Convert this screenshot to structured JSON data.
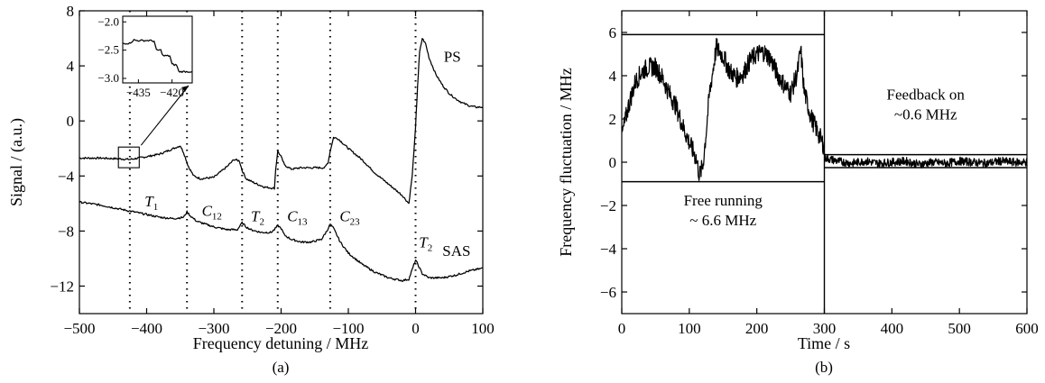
{
  "chart_data": [
    {
      "panel_label": "(a)",
      "type": "line",
      "xlabel": "Frequency detuning / MHz",
      "ylabel": "Signal / (a.u.)",
      "xlim": [
        -500,
        100
      ],
      "ylim": [
        -14,
        8
      ],
      "xticks": [
        -500,
        -400,
        -300,
        -200,
        -100,
        0,
        100
      ],
      "yticks": [
        -12,
        -8,
        -4,
        0,
        4,
        8
      ],
      "xtick_labels": [
        "−500",
        "−400",
        "−300",
        "−200",
        "−100",
        "0",
        "100"
      ],
      "ytick_labels": [
        "−12",
        "−8",
        "−4",
        "0",
        "4",
        "8"
      ],
      "grid": false,
      "vertical_dotted_lines_x": [
        -425,
        -340,
        -258,
        -205,
        -127,
        0
      ],
      "series": [
        {
          "name": "PS",
          "x": [
            -500,
            -470,
            -440,
            -425,
            -400,
            -380,
            -360,
            -350,
            -345,
            -338,
            -330,
            -320,
            -300,
            -290,
            -280,
            -270,
            -262,
            -258,
            -252,
            -240,
            -225,
            -210,
            -208,
            -205,
            -200,
            -195,
            -185,
            -170,
            -150,
            -135,
            -130,
            -127,
            -122,
            -115,
            -100,
            -80,
            -60,
            -40,
            -20,
            -10,
            -5,
            0,
            3,
            6,
            10,
            15,
            20,
            30,
            40,
            50,
            60,
            70,
            80,
            90,
            100
          ],
          "y": [
            -2.7,
            -2.7,
            -2.75,
            -2.8,
            -2.6,
            -2.4,
            -2.0,
            -1.8,
            -2.3,
            -3.3,
            -4.0,
            -4.2,
            -4.1,
            -3.7,
            -3.3,
            -2.8,
            -2.9,
            -3.6,
            -4.2,
            -4.5,
            -4.8,
            -4.9,
            -3.5,
            -2.2,
            -2.6,
            -3.2,
            -3.5,
            -3.4,
            -3.4,
            -3.4,
            -3.0,
            -2.2,
            -1.2,
            -1.3,
            -2.0,
            -2.8,
            -3.8,
            -4.6,
            -5.4,
            -6.0,
            -4.0,
            -0.5,
            2.5,
            5.0,
            6.0,
            5.6,
            4.6,
            3.4,
            2.6,
            2.0,
            1.6,
            1.3,
            1.1,
            1.0,
            1.0
          ]
        },
        {
          "name": "SAS",
          "x": [
            -500,
            -470,
            -440,
            -410,
            -380,
            -360,
            -345,
            -340,
            -335,
            -325,
            -300,
            -280,
            -265,
            -258,
            -252,
            -245,
            -230,
            -215,
            -210,
            -205,
            -200,
            -195,
            -185,
            -170,
            -155,
            -140,
            -132,
            -127,
            -122,
            -112,
            -100,
            -80,
            -60,
            -40,
            -20,
            -10,
            -5,
            0,
            5,
            10,
            20,
            40,
            60,
            80,
            100
          ],
          "y": [
            -5.9,
            -6.1,
            -6.4,
            -6.7,
            -7.0,
            -7.1,
            -7.0,
            -6.6,
            -6.9,
            -7.3,
            -7.7,
            -7.9,
            -7.9,
            -7.4,
            -7.7,
            -7.9,
            -8.1,
            -8.1,
            -7.9,
            -7.6,
            -7.8,
            -8.3,
            -8.6,
            -8.8,
            -8.8,
            -8.6,
            -8.0,
            -7.5,
            -7.8,
            -8.8,
            -9.6,
            -10.4,
            -11.0,
            -11.4,
            -11.6,
            -11.5,
            -10.8,
            -10.1,
            -10.6,
            -11.1,
            -11.4,
            -11.4,
            -11.2,
            -10.9,
            -10.7
          ]
        }
      ],
      "annotations": [
        {
          "base": "T",
          "sub": "1",
          "x": -403,
          "y": -6.2
        },
        {
          "base": "C",
          "sub": "12",
          "x": -318,
          "y": -6.9
        },
        {
          "base": "T",
          "sub": "2",
          "x": -245,
          "y": -7.3
        },
        {
          "base": "C",
          "sub": "13",
          "x": -191,
          "y": -7.3
        },
        {
          "base": "C",
          "sub": "23",
          "x": -113,
          "y": -7.3
        },
        {
          "base": "T",
          "sub": "2",
          "x": 5,
          "y": -9.2
        },
        {
          "text": "PS",
          "x": 42,
          "y": 4.3
        },
        {
          "text": "SAS",
          "x": 40,
          "y": -9.8
        }
      ],
      "inset": {
        "xlim": [
          -442,
          -411
        ],
        "ylim": [
          -3.0,
          -2.0
        ],
        "xticks": [
          -435,
          -420
        ],
        "xtick_labels": [
          "−435",
          "−420"
        ],
        "yticks": [
          -2.0,
          -2.5,
          -3.0
        ],
        "ytick_labels": [
          "−2.0",
          "−2.5",
          "−3.0"
        ],
        "x": [
          -442,
          -439,
          -437,
          -436,
          -434,
          -430,
          -428,
          -427,
          -425,
          -424,
          -423,
          -421,
          -420,
          -419,
          -418,
          -417,
          -416,
          -415,
          -413,
          -411
        ],
        "y": [
          -2.38,
          -2.38,
          -2.32,
          -2.33,
          -2.33,
          -2.33,
          -2.34,
          -2.5,
          -2.5,
          -2.6,
          -2.6,
          -2.6,
          -2.75,
          -2.76,
          -2.76,
          -2.88,
          -2.88,
          -2.88,
          -2.88,
          -2.88
        ]
      }
    },
    {
      "panel_label": "(b)",
      "type": "line",
      "xlabel": "Time / s",
      "ylabel": "Frequency fluctuation / MHz",
      "xlim": [
        0,
        600
      ],
      "ylim": [
        -7,
        7
      ],
      "xticks": [
        0,
        100,
        200,
        300,
        400,
        500,
        600
      ],
      "yticks": [
        -6,
        -4,
        -2,
        0,
        2,
        4,
        6
      ],
      "xtick_labels": [
        "0",
        "100",
        "200",
        "300",
        "400",
        "500",
        "600"
      ],
      "ytick_labels": [
        "−6",
        "−4",
        "−2",
        "0",
        "2",
        "4",
        "6"
      ],
      "grid": false,
      "vertical_line_x": 300,
      "reference_lines": {
        "free_running": [
          -0.9,
          5.9
        ],
        "feedback": [
          -0.25,
          0.35
        ]
      },
      "series": [
        {
          "x": [
            0,
            10,
            20,
            30,
            40,
            50,
            60,
            70,
            80,
            90,
            100,
            110,
            115,
            120,
            125,
            130,
            140,
            150,
            160,
            170,
            180,
            190,
            200,
            210,
            220,
            230,
            240,
            250,
            260,
            265,
            270,
            280,
            290,
            300
          ],
          "y": [
            1.2,
            2.6,
            3.7,
            4.2,
            4.4,
            4.4,
            3.9,
            3.2,
            2.6,
            1.7,
            0.9,
            0.2,
            -0.6,
            -0.2,
            1.4,
            3.2,
            5.3,
            4.9,
            4.2,
            3.9,
            4.1,
            4.7,
            5.0,
            5.1,
            4.8,
            4.1,
            3.6,
            3.2,
            4.1,
            5.2,
            3.3,
            2.1,
            1.4,
            0.7
          ]
        },
        {
          "x": [
            300,
            320,
            340,
            360,
            380,
            400,
            420,
            440,
            460,
            480,
            500,
            520,
            540,
            560,
            580,
            600
          ],
          "y": [
            0.2,
            0.05,
            -0.05,
            0.05,
            -0.05,
            0.0,
            0.05,
            -0.1,
            0.0,
            -0.05,
            0.05,
            0.0,
            -0.05,
            0.05,
            0.0,
            0.0
          ]
        }
      ],
      "annotations": [
        {
          "lines": [
            "Free running",
            "~ 6.6 MHz"
          ],
          "x": 150,
          "y": -2.0
        },
        {
          "lines": [
            "Feedback on",
            "~0.6 MHz"
          ],
          "x": 450,
          "y": 2.9
        }
      ]
    }
  ]
}
